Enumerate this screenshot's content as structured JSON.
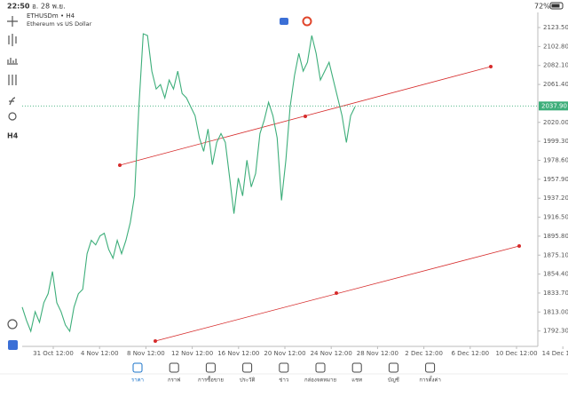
{
  "status_bar": {
    "time": "22:50",
    "date": "อ. 28 พ.ย.",
    "battery": "72%"
  },
  "header": {
    "symbol": "ETHUSDm • H4",
    "description": "Ethereum vs US Dollar"
  },
  "toolbar": {
    "timeframe": "H4"
  },
  "chart_data": {
    "type": "line",
    "series": [
      {
        "name": "ETHUSDm",
        "color": "#3dae7a",
        "values": [
          1818.3,
          1803.7,
          1792.0,
          1813.4,
          1801.8,
          1823.2,
          1832.9,
          1857.2,
          1823.2,
          1813.4,
          1798.9,
          1792.0,
          1818.3,
          1832.9,
          1837.7,
          1876.6,
          1891.2,
          1886.3,
          1896.1,
          1899.0,
          1881.5,
          1871.8,
          1891.2,
          1876.6,
          1891.2,
          1910.6,
          1939.8,
          2037.0,
          2116.7,
          2114.8,
          2075.9,
          2056.4,
          2061.3,
          2046.7,
          2066.2,
          2056.4,
          2075.9,
          2051.6,
          2046.7,
          2037.0,
          2027.3,
          2003.0,
          1988.4,
          2012.7,
          1973.8,
          1998.1,
          2007.8,
          1998.1,
          1959.2,
          1920.4,
          1959.2,
          1939.8,
          1978.7,
          1949.5,
          1964.1,
          2007.8,
          2022.4,
          2041.9,
          2027.3,
          2003.0,
          1934.9,
          1978.7,
          2037.0,
          2071.0,
          2095.3,
          2075.9,
          2085.6,
          2114.8,
          2095.3,
          2066.2,
          2075.9,
          2085.6,
          2066.2,
          2046.7,
          2027.3,
          1998.1,
          2027.3,
          2037.0
        ]
      }
    ],
    "current_price": {
      "value": 2037.9,
      "label": "2037.90"
    },
    "ylim": [
      1775.5,
      2140
    ],
    "yticks": [
      {
        "value": 1792.3,
        "label": "1792.30"
      },
      {
        "value": 1813,
        "label": "1813.00"
      },
      {
        "value": 1833.7,
        "label": "1833.70"
      },
      {
        "value": 1854.4,
        "label": "1854.40"
      },
      {
        "value": 1875.1,
        "label": "1875.10"
      },
      {
        "value": 1895.8,
        "label": "1895.80"
      },
      {
        "value": 1916.5,
        "label": "1916.50"
      },
      {
        "value": 1937.2,
        "label": "1937.20"
      },
      {
        "value": 1957.9,
        "label": "1957.90"
      },
      {
        "value": 1978.6,
        "label": "1978.60"
      },
      {
        "value": 1999.3,
        "label": "1999.30"
      },
      {
        "value": 2020,
        "label": "2020.00"
      },
      {
        "value": 2061.4,
        "label": "2061.40"
      },
      {
        "value": 2082.1,
        "label": "2082.10"
      },
      {
        "value": 2102.8,
        "label": "2102.80"
      },
      {
        "value": 2123.5,
        "label": "2123.50"
      }
    ],
    "xticks": [
      "31 Oct 12:00",
      "4 Nov 12:00",
      "8 Nov 12:00",
      "12 Nov 12:00",
      "16 Nov 12:00",
      "20 Nov 12:00",
      "24 Nov 12:00",
      "28 Nov 12:00",
      "2 Dec 12:00",
      "6 Dec 12:00",
      "10 Dec 12:00",
      "14 Dec 12:00"
    ]
  },
  "nav": [
    "ราคา",
    "กราฟ",
    "การซื้อขาย",
    "ประวัติ",
    "ข่าว",
    "กล่องจดหมาย",
    "แชท",
    "บัญชี",
    "การตั้งค่า"
  ]
}
